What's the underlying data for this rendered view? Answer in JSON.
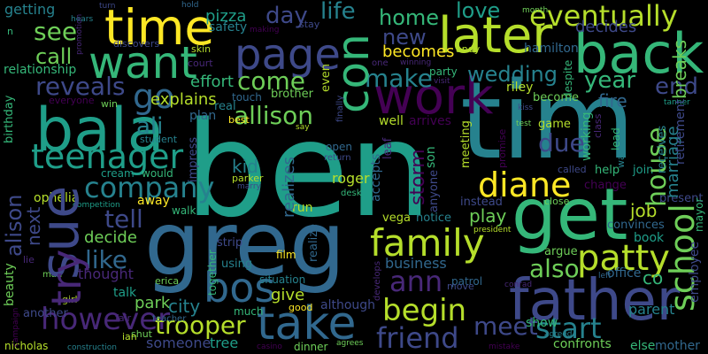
{
  "words": [
    {
      "text": "ben",
      "color": "#1f9e89"
    },
    {
      "text": "tim",
      "color": "#26828e"
    },
    {
      "text": "greg",
      "color": "#31688e"
    },
    {
      "text": "get",
      "color": "#35b779"
    },
    {
      "text": "later",
      "color": "#b5de2b"
    },
    {
      "text": "back",
      "color": "#35b779"
    },
    {
      "text": "bala",
      "color": "#1f9e89"
    },
    {
      "text": "father",
      "color": "#3e4989"
    },
    {
      "text": "take",
      "color": "#31688e"
    },
    {
      "text": "time",
      "color": "#fde725"
    },
    {
      "text": "page",
      "color": "#3e4989"
    },
    {
      "text": "want",
      "color": "#35b779"
    },
    {
      "text": "work",
      "color": "#440154"
    },
    {
      "text": "sue",
      "color": "#3e4989"
    },
    {
      "text": "try",
      "color": "#482878"
    },
    {
      "text": "go",
      "color": "#31688e"
    },
    {
      "text": "bos",
      "color": "#31688e"
    },
    {
      "text": "con",
      "color": "#35b779"
    },
    {
      "text": "teenager",
      "color": "#1f9e89"
    },
    {
      "text": "company",
      "color": "#26828e"
    },
    {
      "text": "diane",
      "color": "#fde725"
    },
    {
      "text": "family",
      "color": "#b5de2b"
    },
    {
      "text": "patty",
      "color": "#b5de2b"
    },
    {
      "text": "school",
      "color": "#6ece58"
    },
    {
      "text": "house",
      "color": "#6ece58"
    },
    {
      "text": "eventually",
      "color": "#b5de2b"
    },
    {
      "text": "begin",
      "color": "#b5de2b"
    },
    {
      "text": "meet",
      "color": "#3e4989"
    },
    {
      "text": "start",
      "color": "#26828e"
    },
    {
      "text": "friend",
      "color": "#3e4989"
    },
    {
      "text": "however",
      "color": "#482878"
    },
    {
      "text": "trooper",
      "color": "#b5de2b"
    },
    {
      "text": "make",
      "color": "#26828e"
    },
    {
      "text": "come",
      "color": "#6ece58"
    },
    {
      "text": "allison",
      "color": "#6ece58"
    },
    {
      "text": "reveals",
      "color": "#3e4989"
    },
    {
      "text": "see",
      "color": "#6ece58"
    },
    {
      "text": "ali",
      "color": "#26828e"
    },
    {
      "text": "ann",
      "color": "#482878"
    },
    {
      "text": "tell",
      "color": "#3e4989"
    },
    {
      "text": "like",
      "color": "#31688e"
    },
    {
      "text": "also",
      "color": "#6ece58"
    },
    {
      "text": "day",
      "color": "#3e4989"
    },
    {
      "text": "life",
      "color": "#26828e"
    },
    {
      "text": "home",
      "color": "#35b779"
    },
    {
      "text": "love",
      "color": "#1f9e89"
    },
    {
      "text": "new",
      "color": "#3e4989"
    },
    {
      "text": "wedding",
      "color": "#26828e"
    },
    {
      "text": "year",
      "color": "#35b779"
    },
    {
      "text": "end",
      "color": "#3e4989"
    },
    {
      "text": "due",
      "color": "#3e4989"
    },
    {
      "text": "call",
      "color": "#6ece58"
    },
    {
      "text": "effort",
      "color": "#35b779"
    },
    {
      "text": "explains",
      "color": "#b5de2b"
    },
    {
      "text": "becomes",
      "color": "#fde725"
    },
    {
      "text": "decides",
      "color": "#3e4989"
    },
    {
      "text": "breaks",
      "color": "#6ece58"
    },
    {
      "text": "getting",
      "color": "#26828e"
    },
    {
      "text": "relationship",
      "color": "#35b779"
    },
    {
      "text": "pizza",
      "color": "#1f9e89"
    },
    {
      "text": "safety",
      "color": "#26828e"
    },
    {
      "text": "alison",
      "color": "#3e4989"
    },
    {
      "text": "next",
      "color": "#3e4989"
    },
    {
      "text": "decide",
      "color": "#6ece58"
    },
    {
      "text": "thought",
      "color": "#482878"
    },
    {
      "text": "park",
      "color": "#6ece58"
    },
    {
      "text": "city",
      "color": "#26828e"
    },
    {
      "text": "talk",
      "color": "#1f9e89"
    },
    {
      "text": "kid",
      "color": "#26828e"
    },
    {
      "text": "realizes",
      "color": "#31688e"
    },
    {
      "text": "roger",
      "color": "#b5de2b"
    },
    {
      "text": "storm",
      "color": "#440154"
    },
    {
      "text": "business",
      "color": "#31688e"
    },
    {
      "text": "play",
      "color": "#6ece58"
    },
    {
      "text": "job",
      "color": "#b5de2b"
    },
    {
      "text": "fire",
      "color": "#31688e"
    },
    {
      "text": "marriage",
      "color": "#26828e"
    },
    {
      "text": "give",
      "color": "#b5de2b"
    },
    {
      "text": "although",
      "color": "#3e4989"
    },
    {
      "text": "show",
      "color": "#35b779"
    },
    {
      "text": "parent",
      "color": "#26828e"
    },
    {
      "text": "mother",
      "color": "#31688e"
    },
    {
      "text": "office",
      "color": "#31688e"
    },
    {
      "text": "co",
      "color": "#35b779"
    },
    {
      "text": "employee",
      "color": "#3e4989"
    },
    {
      "text": "someone",
      "color": "#3e4989"
    },
    {
      "text": "tree",
      "color": "#1f9e89"
    },
    {
      "text": "dinner",
      "color": "#6ece58"
    },
    {
      "text": "confronts",
      "color": "#6ece58"
    },
    {
      "text": "else",
      "color": "#35b779"
    },
    {
      "text": "nicholas",
      "color": "#b5de2b"
    },
    {
      "text": "ophelia",
      "color": "#b5de2b"
    },
    {
      "text": "beauty",
      "color": "#6ece58"
    },
    {
      "text": "another",
      "color": "#3e4989"
    },
    {
      "text": "birthday",
      "color": "#35b779"
    },
    {
      "text": "arrives",
      "color": "#440154"
    },
    {
      "text": "well",
      "color": "#b5de2b"
    },
    {
      "text": "hamilton",
      "color": "#31688e"
    },
    {
      "text": "riley",
      "color": "#b5de2b"
    },
    {
      "text": "become",
      "color": "#6ece58"
    },
    {
      "text": "game",
      "color": "#b5de2b"
    },
    {
      "text": "working",
      "color": "#35b779"
    },
    {
      "text": "retirement",
      "color": "#3e4989"
    },
    {
      "text": "receives",
      "color": "#26828e"
    },
    {
      "text": "help",
      "color": "#35b779"
    },
    {
      "text": "join",
      "color": "#1f9e89"
    },
    {
      "text": "change",
      "color": "#440154"
    },
    {
      "text": "present",
      "color": "#3e4989"
    },
    {
      "text": "convinces",
      "color": "#31688e"
    },
    {
      "text": "book",
      "color": "#1f9e89"
    },
    {
      "text": "argue",
      "color": "#6ece58"
    },
    {
      "text": "vega",
      "color": "#b5de2b"
    },
    {
      "text": "notice",
      "color": "#26828e"
    },
    {
      "text": "instead",
      "color": "#3e4989"
    },
    {
      "text": "anyone",
      "color": "#3e4989"
    },
    {
      "text": "son",
      "color": "#35b779"
    },
    {
      "text": "meeting",
      "color": "#b5de2b"
    },
    {
      "text": "accepts",
      "color": "#31688e"
    },
    {
      "text": "leaf",
      "color": "#482878"
    },
    {
      "text": "open",
      "color": "#31688e"
    },
    {
      "text": "return",
      "color": "#3e4989"
    },
    {
      "text": "desk",
      "color": "#35b779"
    },
    {
      "text": "run",
      "color": "#b5de2b"
    },
    {
      "text": "realize",
      "color": "#31688e"
    },
    {
      "text": "film",
      "color": "#fde725"
    },
    {
      "text": "situation",
      "color": "#26828e"
    },
    {
      "text": "good",
      "color": "#fde725"
    },
    {
      "text": "much",
      "color": "#35b779"
    },
    {
      "text": "using",
      "color": "#26828e"
    },
    {
      "text": "together",
      "color": "#35b779"
    },
    {
      "text": "strip",
      "color": "#3e4989"
    },
    {
      "text": "parker",
      "color": "#b5de2b"
    },
    {
      "text": "marry",
      "color": "#3e4989"
    },
    {
      "text": "impress",
      "color": "#3e4989"
    },
    {
      "text": "student",
      "color": "#26828e"
    },
    {
      "text": "cream",
      "color": "#1f9e89"
    },
    {
      "text": "would",
      "color": "#35b779"
    },
    {
      "text": "away",
      "color": "#fde725"
    },
    {
      "text": "walk",
      "color": "#35b779"
    },
    {
      "text": "shut",
      "color": "#6ece58"
    },
    {
      "text": "teacher",
      "color": "#31688e"
    },
    {
      "text": "fair",
      "color": "#482878"
    },
    {
      "text": "ian",
      "color": "#b5de2b"
    },
    {
      "text": "construction",
      "color": "#26828e"
    },
    {
      "text": "girl",
      "color": "#b5de2b"
    },
    {
      "text": "man",
      "color": "#6ece58"
    },
    {
      "text": "lie",
      "color": "#482878"
    },
    {
      "text": "campaign",
      "color": "#440154"
    },
    {
      "text": "competition",
      "color": "#1f9e89"
    },
    {
      "text": "erica",
      "color": "#6ece58"
    },
    {
      "text": "plan",
      "color": "#31688e"
    },
    {
      "text": "real",
      "color": "#26828e"
    },
    {
      "text": "touch",
      "color": "#31688e"
    },
    {
      "text": "brother",
      "color": "#6ece58"
    },
    {
      "text": "best",
      "color": "#fde725"
    },
    {
      "text": "say",
      "color": "#b5de2b"
    },
    {
      "text": "court",
      "color": "#482878"
    },
    {
      "text": "skin",
      "color": "#b5de2b"
    },
    {
      "text": "discovers",
      "color": "#3e4989"
    },
    {
      "text": "win",
      "color": "#6ece58"
    },
    {
      "text": "everyone",
      "color": "#440154"
    },
    {
      "text": "promotion",
      "color": "#482878"
    },
    {
      "text": "turn",
      "color": "#3e4989"
    },
    {
      "text": "hears",
      "color": "#26828e"
    },
    {
      "text": "hold",
      "color": "#31688e"
    },
    {
      "text": "making",
      "color": "#440154"
    },
    {
      "text": "stay",
      "color": "#3e4989"
    },
    {
      "text": "even",
      "color": "#b5de2b"
    },
    {
      "text": "one",
      "color": "#482878"
    },
    {
      "text": "winning",
      "color": "#482878"
    },
    {
      "text": "party",
      "color": "#35b779"
    },
    {
      "text": "andy",
      "color": "#b5de2b"
    },
    {
      "text": "month",
      "color": "#6ece58"
    },
    {
      "text": "visit",
      "color": "#482878"
    },
    {
      "text": "despite",
      "color": "#35b779"
    },
    {
      "text": "tanner",
      "color": "#1f9e89"
    },
    {
      "text": "class",
      "color": "#482878"
    },
    {
      "text": "lead",
      "color": "#35b779"
    },
    {
      "text": "way",
      "color": "#26828e"
    },
    {
      "text": "test",
      "color": "#6ece58"
    },
    {
      "text": "kiss",
      "color": "#3e4989"
    },
    {
      "text": "called",
      "color": "#3e4989"
    },
    {
      "text": "finally",
      "color": "#3e4989"
    },
    {
      "text": "promise",
      "color": "#440154"
    },
    {
      "text": "close",
      "color": "#6ece58"
    },
    {
      "text": "president",
      "color": "#b5de2b"
    },
    {
      "text": "patrol",
      "color": "#31688e"
    },
    {
      "text": "move",
      "color": "#3e4989"
    },
    {
      "text": "conrad",
      "color": "#482878"
    },
    {
      "text": "left",
      "color": "#31688e"
    },
    {
      "text": "agreed",
      "color": "#26828e"
    },
    {
      "text": "develops",
      "color": "#482878"
    },
    {
      "text": "mistake",
      "color": "#440154"
    },
    {
      "text": "agrees",
      "color": "#6ece58"
    },
    {
      "text": "casino",
      "color": "#440154"
    },
    {
      "text": "n",
      "color": "#35b779"
    },
    {
      "text": "mayor",
      "color": "#35b779"
    }
  ]
}
